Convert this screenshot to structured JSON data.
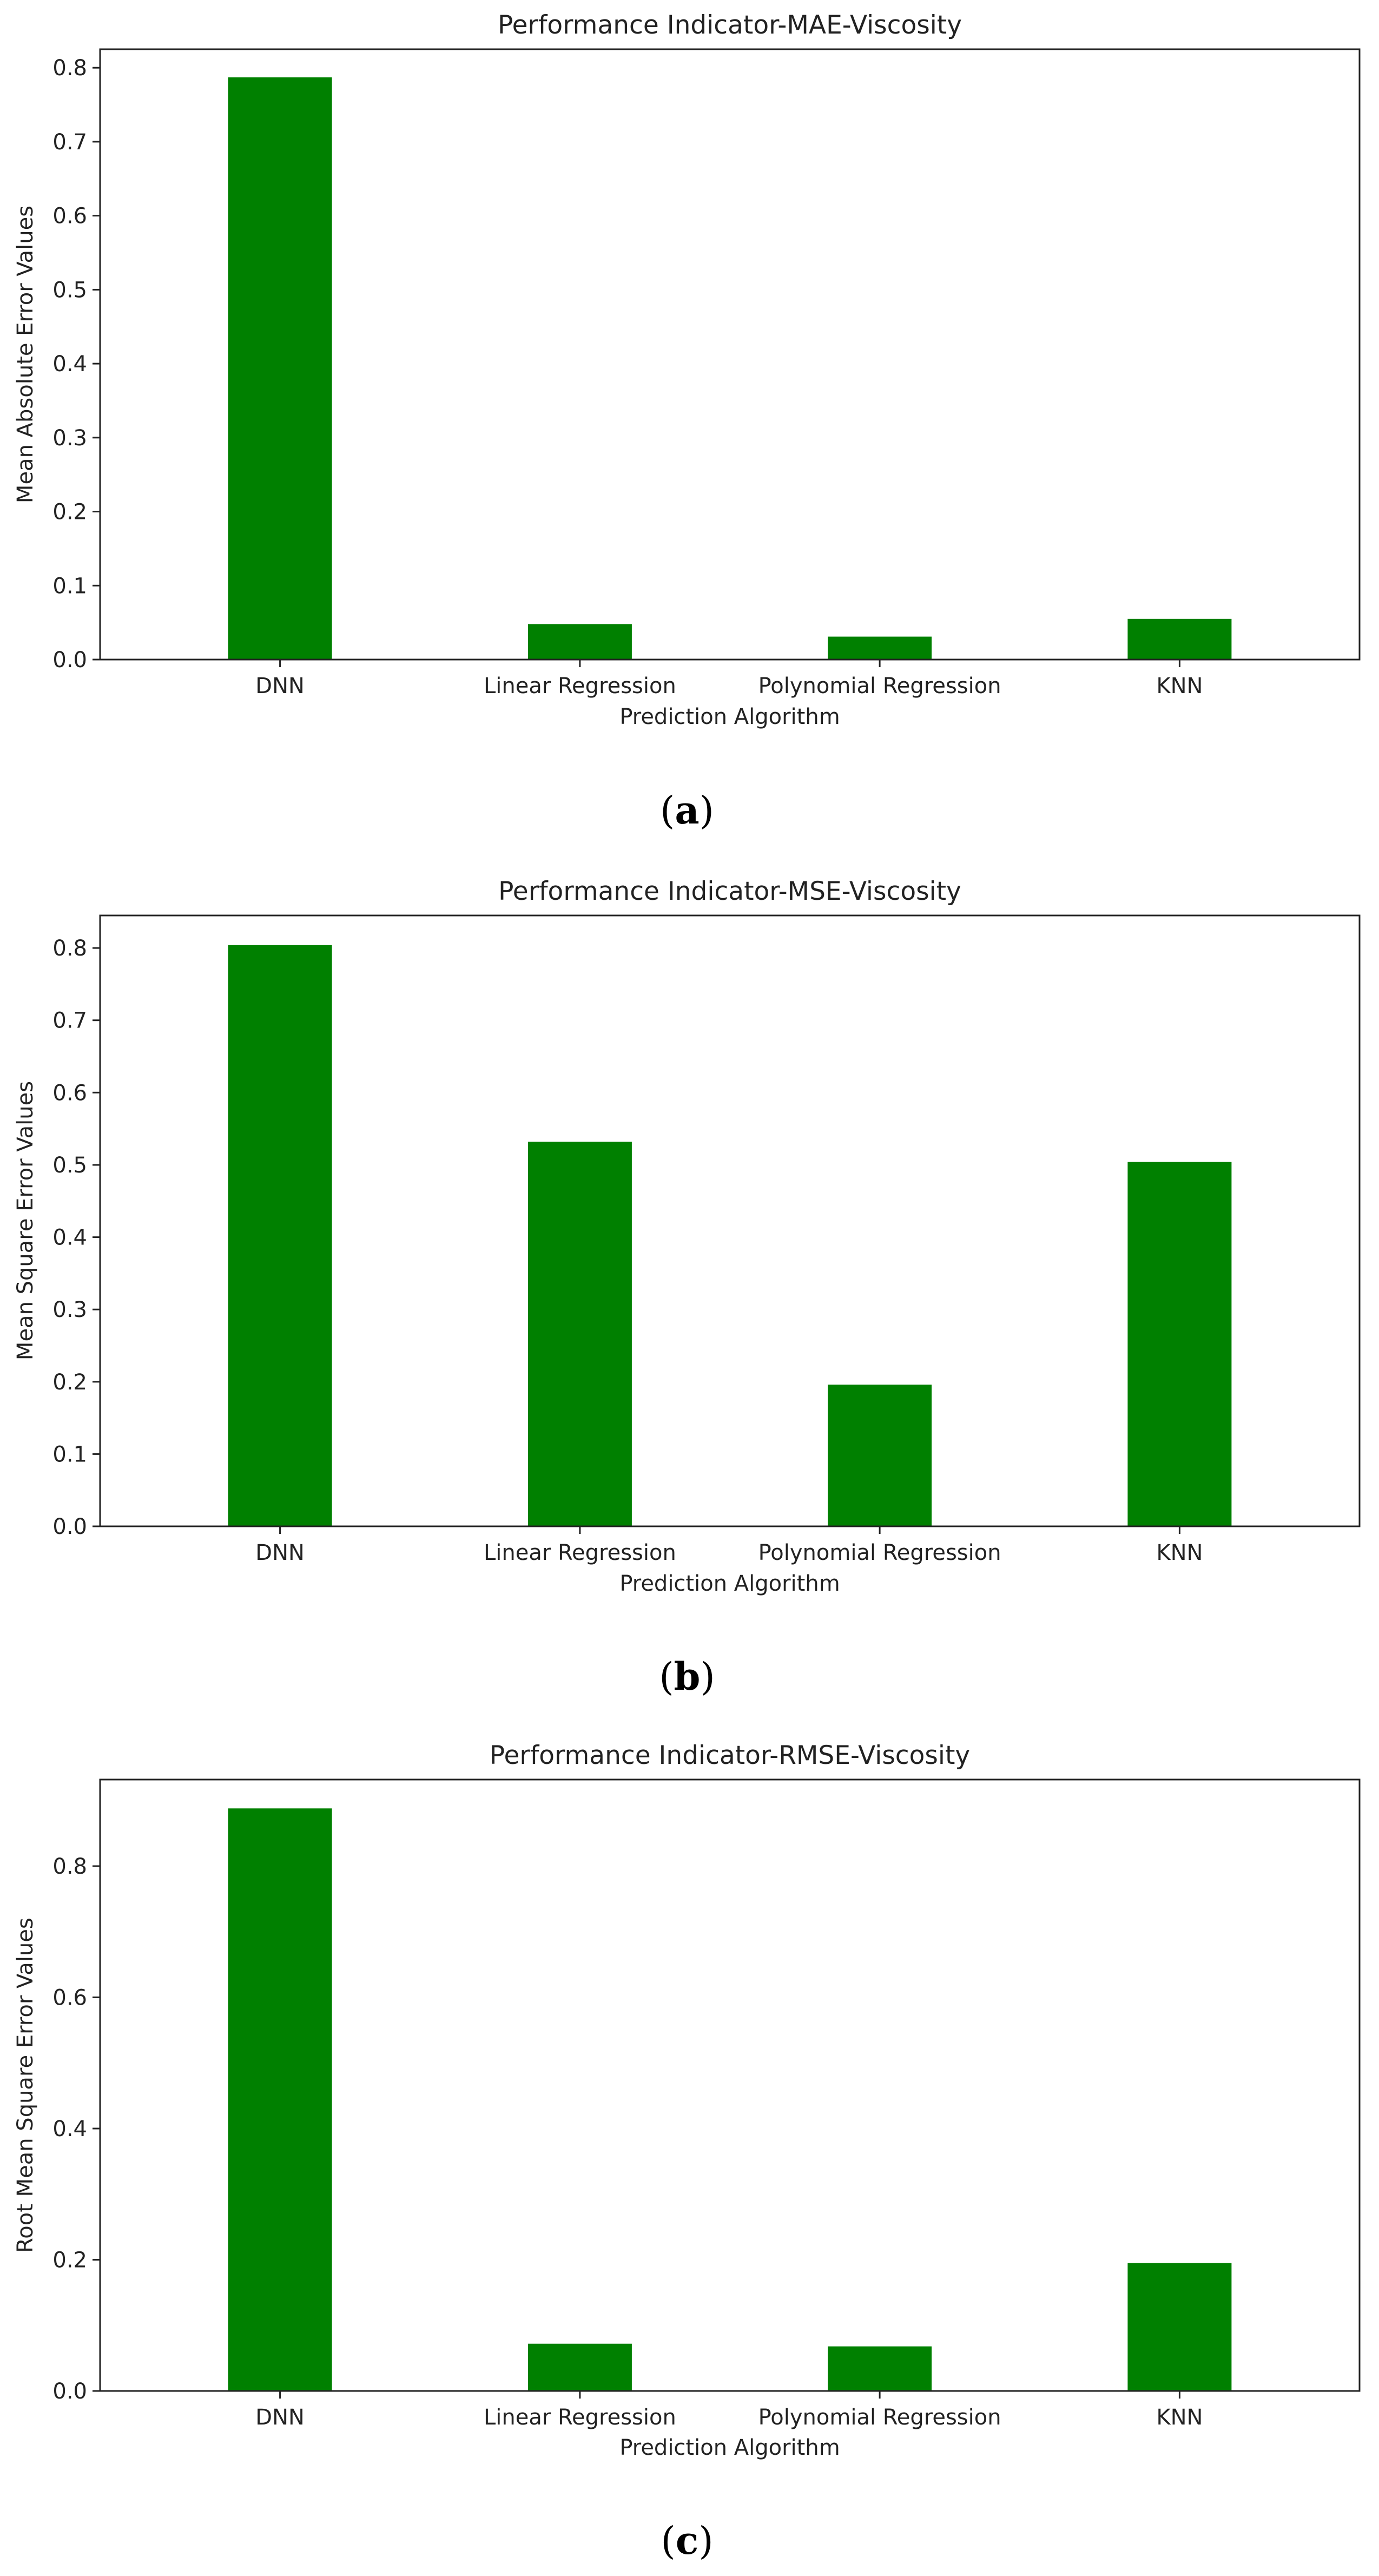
{
  "chart_data": [
    {
      "type": "bar",
      "title": "Performance Indicator-MAE-Viscosity",
      "xlabel": "Prediction Algorithm",
      "ylabel": "Mean Absolute Error Values",
      "categories": [
        "DNN",
        "Linear Regression",
        "Polynomial Regression",
        "KNN"
      ],
      "values": [
        0.787,
        0.048,
        0.031,
        0.055
      ],
      "ylim": [
        0,
        0.825
      ],
      "yticks": [
        0.0,
        0.1,
        0.2,
        0.3,
        0.4,
        0.5,
        0.6,
        0.7,
        0.8
      ],
      "ytick_labels": [
        "0.0",
        "0.1",
        "0.2",
        "0.3",
        "0.4",
        "0.5",
        "0.6",
        "0.7",
        "0.8"
      ],
      "bar_color": "#008000",
      "grid": false,
      "caption_letter": "a"
    },
    {
      "type": "bar",
      "title": "Performance Indicator-MSE-Viscosity",
      "xlabel": "Prediction Algorithm",
      "ylabel": "Mean Square Error Values",
      "categories": [
        "DNN",
        "Linear Regression",
        "Polynomial Regression",
        "KNN"
      ],
      "values": [
        0.804,
        0.532,
        0.196,
        0.504
      ],
      "ylim": [
        0,
        0.845
      ],
      "yticks": [
        0.0,
        0.1,
        0.2,
        0.3,
        0.4,
        0.5,
        0.6,
        0.7,
        0.8
      ],
      "ytick_labels": [
        "0.0",
        "0.1",
        "0.2",
        "0.3",
        "0.4",
        "0.5",
        "0.6",
        "0.7",
        "0.8"
      ],
      "bar_color": "#008000",
      "grid": false,
      "caption_letter": "b"
    },
    {
      "type": "bar",
      "title": "Performance Indicator-RMSE-Viscosity",
      "xlabel": "Prediction Algorithm",
      "ylabel": "Root Mean Square Error Values",
      "categories": [
        "DNN",
        "Linear Regression",
        "Polynomial Regression",
        "KNN"
      ],
      "values": [
        0.888,
        0.072,
        0.068,
        0.195
      ],
      "ylim": [
        0,
        0.932
      ],
      "yticks": [
        0.0,
        0.2,
        0.4,
        0.6,
        0.8
      ],
      "ytick_labels": [
        "0.0",
        "0.2",
        "0.4",
        "0.6",
        "0.8"
      ],
      "bar_color": "#008000",
      "grid": false,
      "caption_letter": "c"
    }
  ],
  "caption_open": "(",
  "caption_close": ")"
}
